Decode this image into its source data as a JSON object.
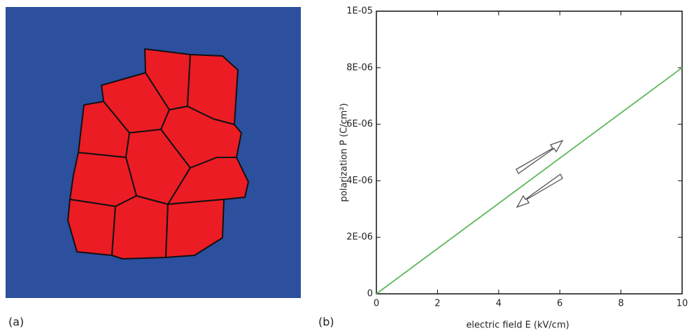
{
  "panel_labels": [
    "(a)",
    "(b)"
  ],
  "chart_data": {
    "type": "line",
    "x_label": "electric field E (kV/cm)",
    "y_label": "polarization P (C/cm²)",
    "x": [
      0,
      10
    ],
    "series": [
      {
        "color": "#5cb85c",
        "values": [
          0,
          8e-06
        ]
      }
    ],
    "xlim": [
      0,
      10
    ],
    "xticks": [
      0,
      2,
      4,
      6,
      8,
      10
    ],
    "ylim": [
      0,
      1e-05
    ],
    "yticks": [
      0,
      {
        "value": 2e-06,
        "label": "2E-06"
      },
      {
        "value": 4e-06,
        "label": "4E-06"
      },
      {
        "value": 6e-06,
        "label": "6E-06"
      },
      {
        "value": 8e-06,
        "label": "8E-06"
      },
      {
        "value": 1e-05,
        "label": "1E-05"
      }
    ],
    "grid": false
  }
}
